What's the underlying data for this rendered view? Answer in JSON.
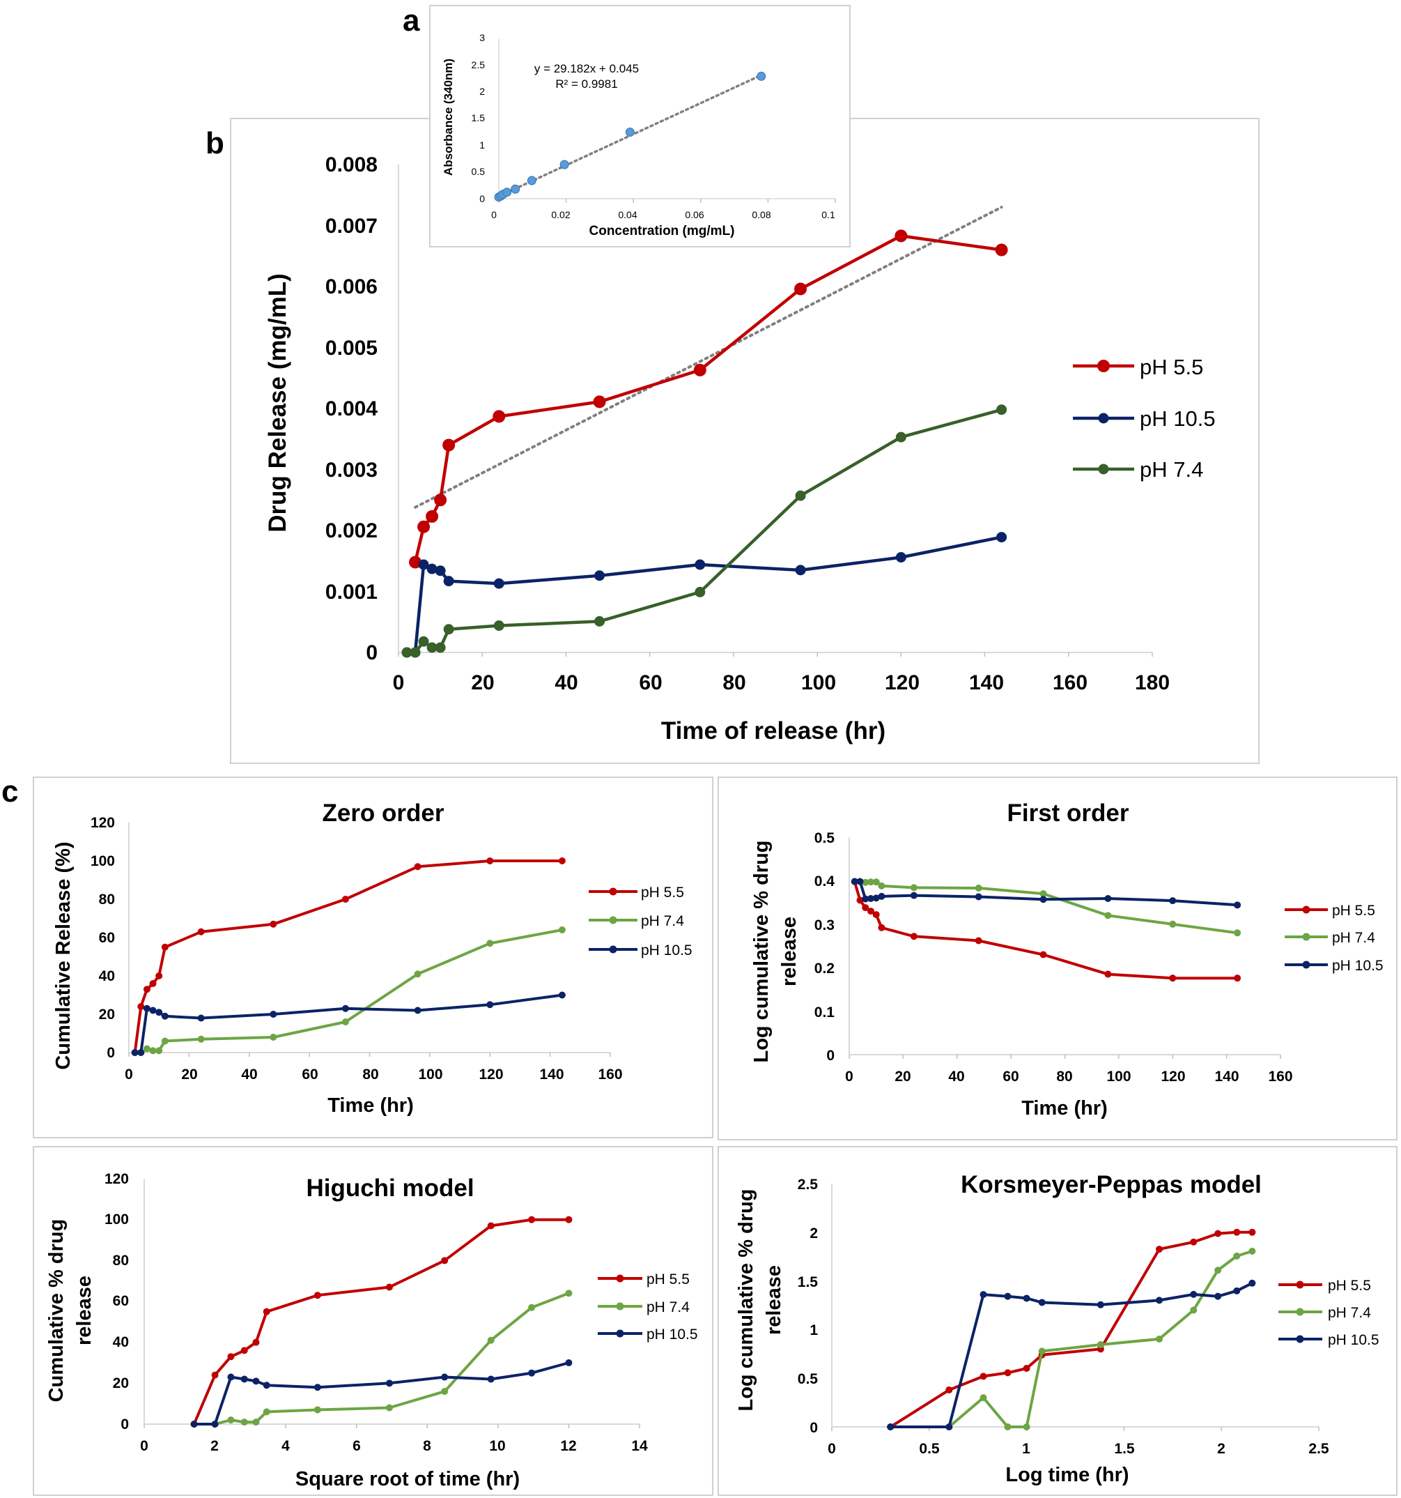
{
  "panel_labels": {
    "a": "a",
    "b": "b",
    "c": "c"
  },
  "colors": {
    "red": "#c00000",
    "blue": "#0b2366",
    "green_dark": "#38602a",
    "green_light": "#6da544",
    "trend": "#808080",
    "calib_marker": "#5b9bd5",
    "frame": "#d0d0d0"
  },
  "chart_data": [
    {
      "id": "a",
      "type": "scatter",
      "title": "",
      "xlabel": "Concentration (mg/mL)",
      "ylabel": "Absorbance (340nm)",
      "xlim": [
        0,
        0.1
      ],
      "ylim": [
        0,
        3
      ],
      "xticks": [
        0,
        0.02,
        0.04,
        0.06,
        0.08,
        0.1
      ],
      "xtick_labels": [
        "0",
        "0.02",
        "0.04",
        "0.06",
        "0.08",
        "0.1"
      ],
      "yticks": [
        0,
        0.5,
        1,
        1.5,
        2,
        2.5,
        3
      ],
      "ytick_labels": [
        "0",
        "0.5",
        "1",
        "1.5",
        "2",
        "2.5",
        "3"
      ],
      "x": [
        0.0,
        0.0006,
        0.0012,
        0.0024,
        0.0049,
        0.0098,
        0.0195,
        0.039,
        0.078
      ],
      "y": [
        0.03,
        0.05,
        0.08,
        0.12,
        0.18,
        0.34,
        0.64,
        1.25,
        2.3
      ],
      "trendline": {
        "slope": 29.182,
        "intercept": 0.045,
        "x_range": [
          0,
          0.078
        ]
      },
      "annotations": [
        "y = 29.182x + 0.045",
        "R² = 0.9981"
      ]
    },
    {
      "id": "b",
      "type": "line",
      "title": "",
      "xlabel": "Time of release (hr)",
      "ylabel": "Drug Release (mg/mL)",
      "xlim": [
        0,
        180
      ],
      "ylim": [
        0,
        0.008
      ],
      "xticks": [
        0,
        20,
        40,
        60,
        80,
        100,
        120,
        140,
        160,
        180
      ],
      "xtick_labels": [
        "0",
        "20",
        "40",
        "60",
        "80",
        "100",
        "120",
        "140",
        "160",
        "180"
      ],
      "yticks": [
        0,
        0.001,
        0.002,
        0.003,
        0.004,
        0.005,
        0.006,
        0.007,
        0.008
      ],
      "ytick_labels": [
        "0",
        "0.001",
        "0.002",
        "0.003",
        "0.004",
        "0.005",
        "0.006",
        "0.007",
        "0.008"
      ],
      "series": [
        {
          "name": "pH 5.5",
          "color": "#c00000",
          "x": [
            4,
            6,
            8,
            10,
            12,
            24,
            48,
            72,
            96,
            120,
            144
          ],
          "y": [
            0.00148,
            0.00206,
            0.00223,
            0.0025,
            0.0034,
            0.00387,
            0.00411,
            0.00463,
            0.00596,
            0.00683,
            0.0066
          ]
        },
        {
          "name": "pH 10.5",
          "color": "#0b2366",
          "x": [
            2,
            4,
            6,
            8,
            10,
            12,
            24,
            48,
            72,
            96,
            120,
            144
          ],
          "y": [
            0,
            0,
            0.00144,
            0.00137,
            0.00134,
            0.00117,
            0.00113,
            0.00126,
            0.00144,
            0.00135,
            0.00156,
            0.00189
          ]
        },
        {
          "name": "pH 7.4",
          "color": "#38602a",
          "x": [
            2,
            4,
            6,
            8,
            10,
            12,
            24,
            48,
            72,
            96,
            120,
            144
          ],
          "y": [
            0,
            0,
            0.00018,
            8e-05,
            8e-05,
            0.00038,
            0.00044,
            0.00051,
            0.00099,
            0.00257,
            0.00353,
            0.00398
          ]
        }
      ],
      "trendline": {
        "series": "pH 5.5",
        "x_range": [
          4,
          144
        ],
        "y_range": [
          0.00238,
          0.0073
        ]
      }
    },
    {
      "id": "zero",
      "type": "line",
      "title": "Zero order",
      "xlabel": "Time (hr)",
      "ylabel": "Cumulative Release (%)",
      "xlim": [
        0,
        160
      ],
      "ylim": [
        0,
        120
      ],
      "xticks": [
        0,
        20,
        40,
        60,
        80,
        100,
        120,
        140,
        160
      ],
      "xtick_labels": [
        "0",
        "20",
        "40",
        "60",
        "80",
        "100",
        "120",
        "140",
        "160"
      ],
      "yticks": [
        0,
        20,
        40,
        60,
        80,
        100,
        120
      ],
      "ytick_labels": [
        "0",
        "20",
        "40",
        "60",
        "80",
        "100",
        "120"
      ],
      "series": [
        {
          "name": "pH 5.5",
          "color": "#c00000",
          "x": [
            2,
            4,
            6,
            8,
            10,
            12,
            24,
            48,
            72,
            96,
            120,
            144
          ],
          "y": [
            0,
            24,
            33,
            36,
            40,
            55,
            63,
            67,
            80,
            97,
            100,
            100
          ]
        },
        {
          "name": "pH 7.4",
          "color": "#6da544",
          "x": [
            2,
            4,
            6,
            8,
            10,
            12,
            24,
            48,
            72,
            96,
            120,
            144
          ],
          "y": [
            0,
            0,
            2,
            1,
            1,
            6,
            7,
            8,
            16,
            41,
            57,
            64
          ]
        },
        {
          "name": "pH 10.5",
          "color": "#0b2366",
          "x": [
            2,
            4,
            6,
            8,
            10,
            12,
            24,
            48,
            72,
            96,
            120,
            144
          ],
          "y": [
            0,
            0,
            23,
            22,
            21,
            19,
            18,
            20,
            23,
            22,
            25,
            30
          ]
        }
      ]
    },
    {
      "id": "first",
      "type": "line",
      "title": "First order",
      "xlabel": "Time (hr)",
      "ylabel": "Log cumulative % drug release",
      "xlim": [
        0,
        160
      ],
      "ylim": [
        0,
        0.5
      ],
      "xticks": [
        0,
        20,
        40,
        60,
        80,
        100,
        120,
        140,
        160
      ],
      "xtick_labels": [
        "0",
        "20",
        "40",
        "60",
        "80",
        "100",
        "120",
        "140",
        "160"
      ],
      "yticks": [
        0,
        0.1,
        0.2,
        0.3,
        0.4,
        0.5
      ],
      "ytick_labels": [
        "0",
        "0.1",
        "0.2",
        "0.3",
        "0.4",
        "0.5"
      ],
      "series": [
        {
          "name": "pH 5.5",
          "color": "#c00000",
          "x": [
            2,
            4,
            6,
            8,
            10,
            12,
            24,
            48,
            72,
            96,
            120,
            144
          ],
          "y": [
            0.398,
            0.355,
            0.338,
            0.33,
            0.322,
            0.292,
            0.272,
            0.262,
            0.23,
            0.185,
            0.176,
            0.176
          ]
        },
        {
          "name": "pH 7.4",
          "color": "#6da544",
          "x": [
            2,
            4,
            6,
            8,
            10,
            12,
            24,
            48,
            72,
            96,
            120,
            144
          ],
          "y": [
            0.398,
            0.398,
            0.396,
            0.397,
            0.397,
            0.388,
            0.384,
            0.383,
            0.37,
            0.32,
            0.3,
            0.28
          ]
        },
        {
          "name": "pH 10.5",
          "color": "#0b2366",
          "x": [
            2,
            4,
            6,
            8,
            10,
            12,
            24,
            48,
            72,
            96,
            120,
            144
          ],
          "y": [
            0.398,
            0.398,
            0.358,
            0.359,
            0.36,
            0.364,
            0.366,
            0.363,
            0.357,
            0.359,
            0.354,
            0.344
          ]
        }
      ]
    },
    {
      "id": "higuchi",
      "type": "line",
      "title": "Higuchi model",
      "xlabel": "Square root of  time (hr)",
      "ylabel": "Cumulative % drug release",
      "xlim": [
        0,
        14
      ],
      "ylim": [
        0,
        120
      ],
      "xticks": [
        0,
        2,
        4,
        6,
        8,
        10,
        12,
        14
      ],
      "xtick_labels": [
        "0",
        "2",
        "4",
        "6",
        "8",
        "10",
        "12",
        "14"
      ],
      "yticks": [
        0,
        20,
        40,
        60,
        80,
        100,
        120
      ],
      "ytick_labels": [
        "0",
        "20",
        "40",
        "60",
        "80",
        "100",
        "120"
      ],
      "series": [
        {
          "name": "pH 5.5",
          "color": "#c00000",
          "x": [
            1.41,
            2,
            2.45,
            2.83,
            3.16,
            3.46,
            4.9,
            6.93,
            8.49,
            9.8,
            10.95,
            12
          ],
          "y": [
            0,
            24,
            33,
            36,
            40,
            55,
            63,
            67,
            80,
            97,
            100,
            100
          ]
        },
        {
          "name": "pH 7.4",
          "color": "#6da544",
          "x": [
            1.41,
            2,
            2.45,
            2.83,
            3.16,
            3.46,
            4.9,
            6.93,
            8.49,
            9.8,
            10.95,
            12
          ],
          "y": [
            0,
            0,
            2,
            1,
            1,
            6,
            7,
            8,
            16,
            41,
            57,
            64
          ]
        },
        {
          "name": "pH 10.5",
          "color": "#0b2366",
          "x": [
            1.41,
            2,
            2.45,
            2.83,
            3.16,
            3.46,
            4.9,
            6.93,
            8.49,
            9.8,
            10.95,
            12
          ],
          "y": [
            0,
            0,
            23,
            22,
            21,
            19,
            18,
            20,
            23,
            22,
            25,
            30
          ]
        }
      ]
    },
    {
      "id": "kp",
      "type": "line",
      "title": "Korsmeyer-Peppas model",
      "xlabel": "Log time (hr)",
      "ylabel": "Log cumulative % drug release",
      "xlim": [
        0,
        2.5
      ],
      "ylim": [
        0,
        2.5
      ],
      "xticks": [
        0,
        0.5,
        1,
        1.5,
        2,
        2.5
      ],
      "xtick_labels": [
        "0",
        "0.5",
        "1",
        "1.5",
        "2",
        "2.5"
      ],
      "yticks": [
        0,
        0.5,
        1,
        1.5,
        2,
        2.5
      ],
      "ytick_labels": [
        "0",
        "0.5",
        "1",
        "1.5",
        "2",
        "2.5"
      ],
      "series": [
        {
          "name": "pH 5.5",
          "color": "#c00000",
          "x": [
            0.301,
            0.602,
            0.778,
            0.903,
            1.0,
            1.079,
            1.38,
            1.681,
            1.857,
            1.982,
            2.079,
            2.158
          ],
          "y": [
            0,
            0.38,
            0.52,
            0.556,
            0.602,
            0.74,
            0.8,
            1.826,
            1.9,
            1.987,
            2.0,
            2.0
          ]
        },
        {
          "name": "pH 7.4",
          "color": "#6da544",
          "x": [
            0.301,
            0.602,
            0.778,
            0.903,
            1.0,
            1.079,
            1.38,
            1.681,
            1.857,
            1.982,
            2.079,
            2.158
          ],
          "y": [
            0,
            0,
            0.3,
            0,
            0,
            0.778,
            0.845,
            0.903,
            1.2,
            1.61,
            1.756,
            1.806
          ]
        },
        {
          "name": "pH 10.5",
          "color": "#0b2366",
          "x": [
            0.301,
            0.602,
            0.778,
            0.903,
            1.0,
            1.079,
            1.38,
            1.681,
            1.857,
            1.982,
            2.079,
            2.158
          ],
          "y": [
            0,
            0,
            1.36,
            1.342,
            1.322,
            1.279,
            1.255,
            1.301,
            1.362,
            1.342,
            1.398,
            1.477
          ]
        }
      ]
    }
  ]
}
